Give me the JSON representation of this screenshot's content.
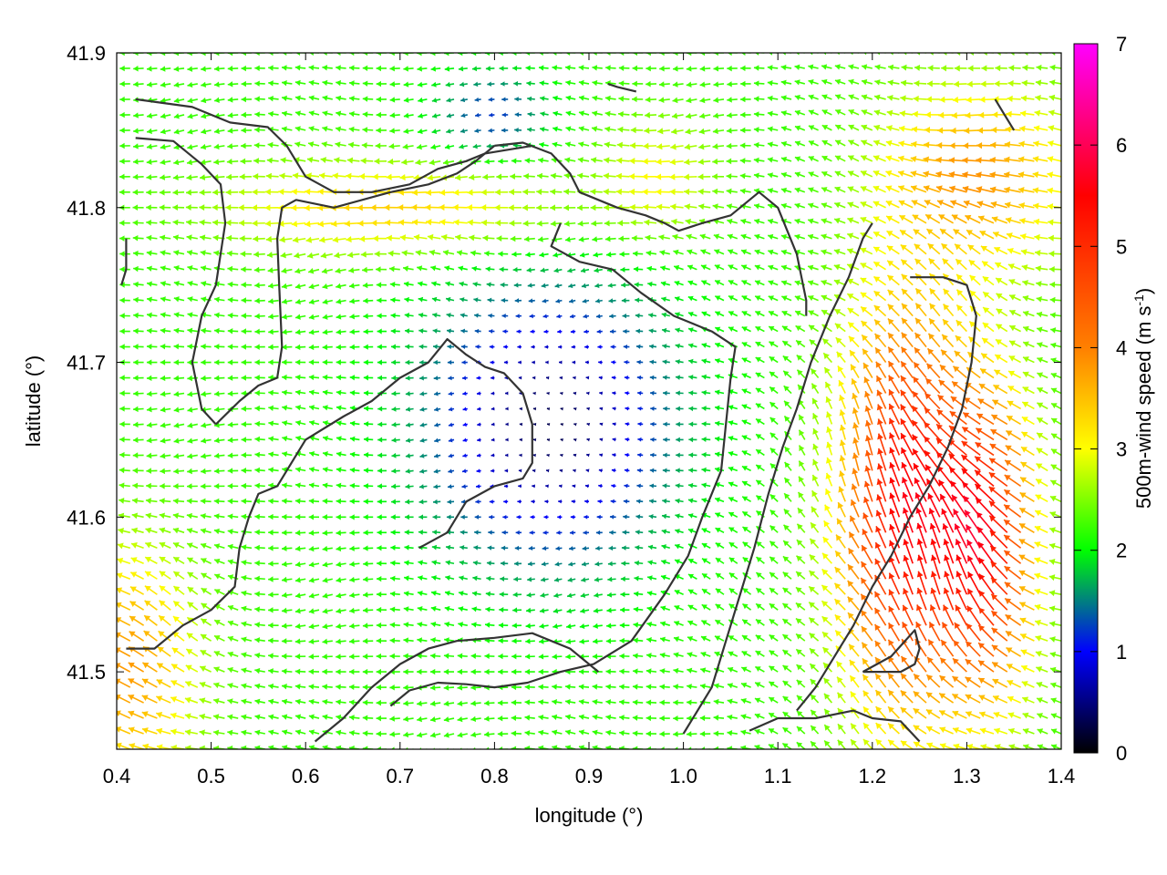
{
  "chart_data": {
    "type": "vector-field",
    "title": "",
    "xlabel": "longitude (°)",
    "ylabel": "latitude (°)",
    "xlim": [
      0.4,
      1.4
    ],
    "ylim": [
      41.45,
      41.9
    ],
    "x_ticks": [
      "0.4",
      "0.5",
      "0.6",
      "0.7",
      "0.8",
      "0.9",
      "1.0",
      "1.1",
      "1.2",
      "1.3",
      "1.4"
    ],
    "y_ticks": [
      "41.5",
      "41.6",
      "41.7",
      "41.8",
      "41.9"
    ],
    "grid": false,
    "colorbar": {
      "label": "500m-wind speed (m s-1)",
      "label_main": "500m-wind speed (m s",
      "label_sup": "-1",
      "label_tail": ")",
      "range": [
        0,
        7
      ],
      "ticks": [
        "0",
        "1",
        "2",
        "3",
        "4",
        "5",
        "6",
        "7"
      ],
      "colormap": [
        "#000000",
        "#0000ff",
        "#00ff00",
        "#ffff00",
        "#ff8000",
        "#ff0000",
        "#ff00ff"
      ]
    },
    "contour_color": "#333333",
    "contours": [
      [
        [
          0.42,
          41.87
        ],
        [
          0.48,
          41.865
        ],
        [
          0.52,
          41.855
        ],
        [
          0.56,
          41.852
        ],
        [
          0.58,
          41.84
        ],
        [
          0.6,
          41.82
        ],
        [
          0.63,
          41.81
        ],
        [
          0.67,
          41.81
        ],
        [
          0.71,
          41.815
        ],
        [
          0.74,
          41.825
        ],
        [
          0.77,
          41.83
        ],
        [
          0.79,
          41.835
        ],
        [
          0.82,
          41.838
        ],
        [
          0.84,
          41.84
        ]
      ],
      [
        [
          0.42,
          41.845
        ],
        [
          0.46,
          41.843
        ],
        [
          0.49,
          41.828
        ],
        [
          0.51,
          41.815
        ],
        [
          0.515,
          41.79
        ],
        [
          0.505,
          41.75
        ],
        [
          0.49,
          41.73
        ],
        [
          0.48,
          41.7
        ],
        [
          0.49,
          41.67
        ],
        [
          0.505,
          41.66
        ]
      ],
      [
        [
          0.505,
          41.66
        ],
        [
          0.53,
          41.675
        ],
        [
          0.55,
          41.685
        ],
        [
          0.57,
          41.69
        ],
        [
          0.575,
          41.71
        ],
        [
          0.572,
          41.75
        ],
        [
          0.57,
          41.78
        ],
        [
          0.575,
          41.8
        ],
        [
          0.59,
          41.805
        ],
        [
          0.63,
          41.8
        ],
        [
          0.69,
          41.81
        ],
        [
          0.73,
          41.815
        ],
        [
          0.76,
          41.822
        ],
        [
          0.78,
          41.83
        ],
        [
          0.8,
          41.84
        ]
      ],
      [
        [
          0.8,
          41.84
        ],
        [
          0.83,
          41.842
        ],
        [
          0.86,
          41.835
        ],
        [
          0.88,
          41.822
        ],
        [
          0.89,
          41.81
        ],
        [
          0.93,
          41.8
        ],
        [
          0.96,
          41.795
        ],
        [
          0.98,
          41.79
        ],
        [
          0.995,
          41.785
        ],
        [
          1.02,
          41.79
        ],
        [
          1.05,
          41.795
        ],
        [
          1.08,
          41.81
        ],
        [
          1.1,
          41.8
        ],
        [
          1.12,
          41.77
        ],
        [
          1.13,
          41.74
        ],
        [
          1.13,
          41.73
        ]
      ],
      [
        [
          0.87,
          41.79
        ],
        [
          0.86,
          41.775
        ],
        [
          0.89,
          41.765
        ],
        [
          0.925,
          41.76
        ],
        [
          0.955,
          41.745
        ],
        [
          0.99,
          41.73
        ],
        [
          1.03,
          41.72
        ],
        [
          1.055,
          41.71
        ],
        [
          1.05,
          41.69
        ],
        [
          1.045,
          41.66
        ],
        [
          1.04,
          41.63
        ],
        [
          1.02,
          41.6
        ],
        [
          1.005,
          41.575
        ],
        [
          0.98,
          41.55
        ],
        [
          0.945,
          41.52
        ],
        [
          0.905,
          41.505
        ],
        [
          0.87,
          41.5
        ],
        [
          0.835,
          41.493
        ],
        [
          0.8,
          41.49
        ],
        [
          0.77,
          41.492
        ],
        [
          0.74,
          41.493
        ],
        [
          0.71,
          41.488
        ],
        [
          0.69,
          41.478
        ]
      ],
      [
        [
          0.72,
          41.58
        ],
        [
          0.75,
          41.59
        ],
        [
          0.77,
          41.61
        ],
        [
          0.8,
          41.62
        ],
        [
          0.83,
          41.625
        ],
        [
          0.84,
          41.635
        ],
        [
          0.84,
          41.66
        ],
        [
          0.83,
          41.68
        ],
        [
          0.81,
          41.693
        ],
        [
          0.79,
          41.697
        ],
        [
          0.77,
          41.705
        ],
        [
          0.75,
          41.715
        ],
        [
          0.73,
          41.7
        ],
        [
          0.7,
          41.69
        ],
        [
          0.67,
          41.675
        ],
        [
          0.64,
          41.665
        ],
        [
          0.6,
          41.65
        ],
        [
          0.57,
          41.62
        ],
        [
          0.55,
          41.615
        ],
        [
          0.54,
          41.6
        ],
        [
          0.53,
          41.58
        ],
        [
          0.525,
          41.555
        ],
        [
          0.5,
          41.54
        ],
        [
          0.47,
          41.53
        ],
        [
          0.44,
          41.515
        ],
        [
          0.41,
          41.515
        ]
      ],
      [
        [
          1.0,
          41.46
        ],
        [
          1.03,
          41.49
        ],
        [
          1.045,
          41.52
        ],
        [
          1.06,
          41.55
        ],
        [
          1.075,
          41.58
        ],
        [
          1.09,
          41.615
        ],
        [
          1.105,
          41.645
        ],
        [
          1.12,
          41.67
        ],
        [
          1.135,
          41.7
        ],
        [
          1.155,
          41.73
        ],
        [
          1.175,
          41.755
        ],
        [
          1.19,
          41.78
        ],
        [
          1.2,
          41.79
        ]
      ],
      [
        [
          1.24,
          41.755
        ],
        [
          1.275,
          41.755
        ],
        [
          1.3,
          41.75
        ],
        [
          1.31,
          41.73
        ],
        [
          1.305,
          41.7
        ],
        [
          1.295,
          41.67
        ],
        [
          1.28,
          41.645
        ],
        [
          1.26,
          41.62
        ],
        [
          1.24,
          41.6
        ],
        [
          1.22,
          41.575
        ],
        [
          1.2,
          41.555
        ],
        [
          1.18,
          41.53
        ],
        [
          1.16,
          41.51
        ],
        [
          1.14,
          41.49
        ],
        [
          1.12,
          41.475
        ]
      ],
      [
        [
          1.19,
          41.5
        ],
        [
          1.22,
          41.51
        ],
        [
          1.245,
          41.527
        ],
        [
          1.25,
          41.515
        ],
        [
          1.245,
          41.505
        ],
        [
          1.23,
          41.5
        ],
        [
          1.19,
          41.5
        ]
      ],
      [
        [
          1.07,
          41.462
        ],
        [
          1.1,
          41.47
        ],
        [
          1.14,
          41.47
        ],
        [
          1.18,
          41.475
        ],
        [
          1.2,
          41.47
        ],
        [
          1.23,
          41.468
        ],
        [
          1.25,
          41.455
        ]
      ],
      [
        [
          0.61,
          41.455
        ],
        [
          0.64,
          41.47
        ],
        [
          0.67,
          41.49
        ],
        [
          0.7,
          41.505
        ],
        [
          0.73,
          41.515
        ],
        [
          0.76,
          41.52
        ],
        [
          0.8,
          41.522
        ],
        [
          0.84,
          41.525
        ],
        [
          0.88,
          41.515
        ],
        [
          0.91,
          41.5
        ]
      ],
      [
        [
          0.92,
          41.88
        ],
        [
          0.93,
          41.878
        ],
        [
          0.95,
          41.875
        ]
      ],
      [
        [
          1.33,
          41.87
        ],
        [
          1.34,
          41.86
        ],
        [
          1.35,
          41.85
        ]
      ],
      [
        [
          0.41,
          41.78
        ],
        [
          0.41,
          41.76
        ],
        [
          0.405,
          41.75
        ]
      ]
    ],
    "vector_field_note": "Arrows show direction of 500 m wind; colour encodes speed. Weak winds (dark blue, <1 m/s) over the central basin around (0.85, 41.65); easterly flow (westward arrows, 1.5-2.5 m/s) over the west; south-westerly/southerly flow strengthening to 4.5-6.5 m/s over the south-east around (1.2-1.35, 41.5-41.7).",
    "vector_grid": {
      "nx": 70,
      "ny": 45
    }
  }
}
